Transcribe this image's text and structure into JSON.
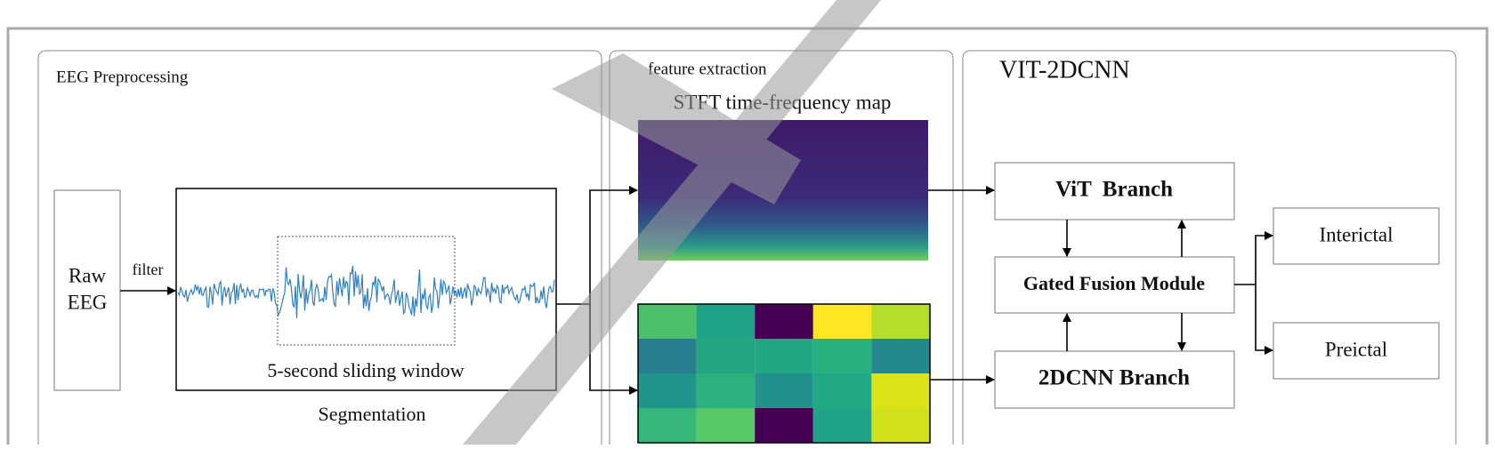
{
  "preprocessing": {
    "title": "EEG Preprocessing",
    "raw_eeg": [
      "Raw",
      "EEG"
    ],
    "filter": "filter",
    "window": "5-second sliding window",
    "segmentation": "Segmentation"
  },
  "features": {
    "title": "feature extraction",
    "stft": "STFT time-frequency map"
  },
  "model": {
    "title": "VIT-2DCNN",
    "vit": "ViT  Branch",
    "fusion": "Gated Fusion Module",
    "cnn": "2DCNN Branch",
    "interictal": "Interictal",
    "preictal": "Preictal"
  }
}
